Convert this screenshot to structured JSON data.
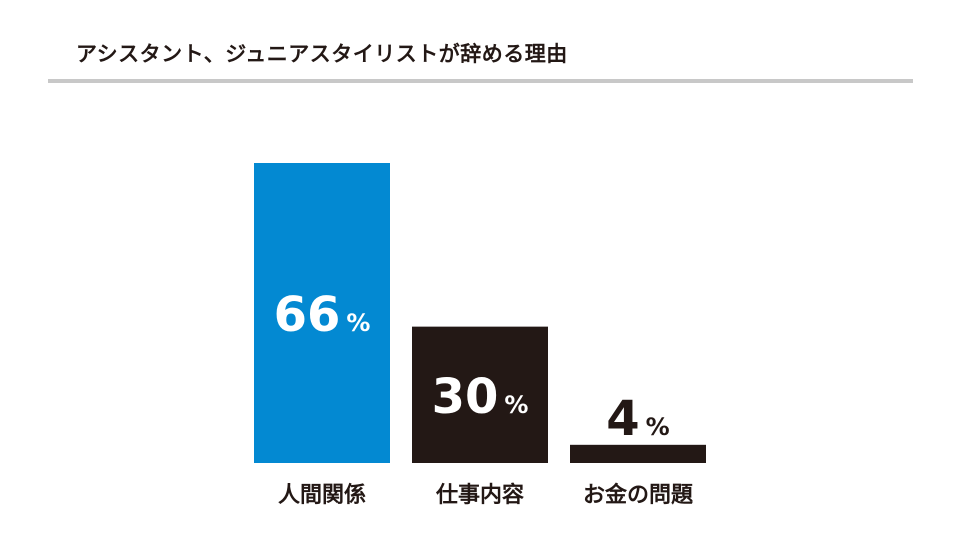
{
  "header": {
    "title": "アシスタント、ジュニアスタイリストが辞める理由"
  },
  "colors": {
    "highlight": "#0389d2",
    "bar": "#231815",
    "rule": "#c8c8c8",
    "label_on_bar": "#ffffff",
    "label_dark": "#231815"
  },
  "chart_data": {
    "type": "bar",
    "title": "アシスタント、ジュニアスタイリストが辞める理由",
    "categories": [
      "人間関係",
      "仕事内容",
      "お金の問題"
    ],
    "values": [
      66,
      30,
      4
    ],
    "unit": "%",
    "ylim": [
      0,
      66
    ],
    "highlight_index": 0,
    "grid": false,
    "legend": "none"
  }
}
